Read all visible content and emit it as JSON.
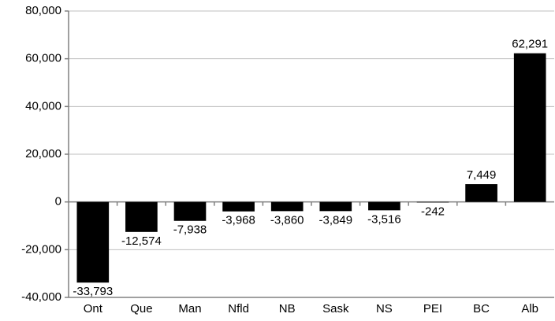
{
  "chart_data": {
    "type": "bar",
    "categories": [
      "Ont",
      "Que",
      "Man",
      "Nfld",
      "NB",
      "Sask",
      "NS",
      "PEI",
      "BC",
      "Alb"
    ],
    "values": [
      -33793,
      -12574,
      -7938,
      -3968,
      -3860,
      -3849,
      -3516,
      -242,
      7449,
      62291
    ],
    "value_labels": [
      "-33,793",
      "-12,574",
      "-7,938",
      "-3,968",
      "-3,860",
      "-3,849",
      "-3,516",
      "-242",
      "7,449",
      "62,291"
    ],
    "color": "#000000",
    "ylim": [
      -40000,
      80000
    ],
    "yticks": [
      {
        "value": -40000,
        "label": "-40,000"
      },
      {
        "value": -20000,
        "label": "-20,000"
      },
      0,
      {
        "value": 20000,
        "label": "20,000"
      },
      {
        "value": 40000,
        "label": "40,000"
      },
      {
        "value": 60000,
        "label": "60,000"
      },
      {
        "value": 80000,
        "label": "80,000"
      }
    ],
    "grid": true
  }
}
